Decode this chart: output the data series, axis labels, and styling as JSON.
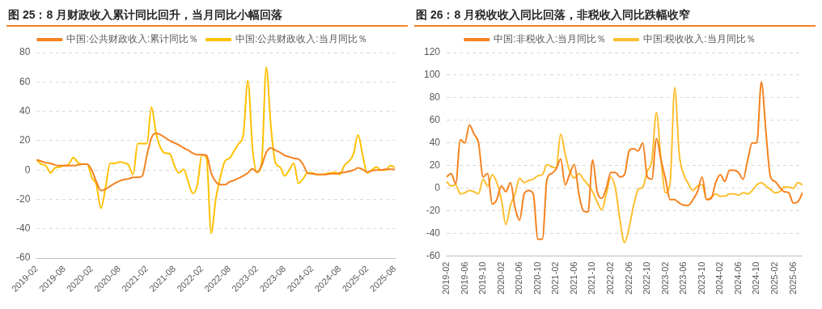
{
  "chart_data": [
    {
      "type": "line",
      "title": "图 25：8 月财政收入累计同比回升，当月同比小幅回落",
      "categories": [
        "2019-02",
        null,
        null,
        null,
        null,
        null,
        "2019-08",
        null,
        null,
        null,
        null,
        null,
        "2020-02",
        null,
        null,
        null,
        null,
        null,
        "2020-08",
        null,
        null,
        null,
        null,
        null,
        "2021-02",
        null,
        null,
        null,
        null,
        null,
        "2021-08",
        null,
        null,
        null,
        null,
        null,
        "2022-02",
        null,
        null,
        null,
        null,
        null,
        "2022-08",
        null,
        null,
        null,
        null,
        null,
        "2023-02",
        null,
        null,
        null,
        null,
        null,
        "2023-08",
        null,
        null,
        null,
        null,
        null,
        "2024-02",
        null,
        null,
        null,
        null,
        null,
        "2024-08",
        null,
        null,
        null,
        null,
        null,
        "2025-02",
        null,
        null,
        null,
        null,
        null,
        "2025-08"
      ],
      "series": [
        {
          "name": "中国:公共财政收入:累计同比％",
          "color": "#f58220",
          "values": [
            7,
            6,
            5,
            4.5,
            3.5,
            3,
            3,
            3,
            3,
            3.5,
            4,
            4,
            0,
            -8,
            -14,
            -13,
            -11,
            -9,
            -7.5,
            -6.5,
            -6,
            -5,
            -5,
            -4,
            10,
            22,
            25,
            24,
            22,
            20,
            18.5,
            17,
            15,
            13.5,
            11.5,
            10.5,
            10.5,
            10,
            -2,
            -8,
            -10,
            -10,
            -8,
            -7,
            -5.5,
            -4,
            -2,
            1,
            -1.5,
            3,
            12,
            15,
            13.5,
            12,
            10,
            9,
            8,
            7.5,
            4,
            -2,
            -2.5,
            -3,
            -3,
            -3,
            -2.5,
            -2.5,
            -2,
            -1.5,
            -1,
            0,
            1.5,
            0.5,
            -1.5,
            -0.5,
            0,
            0,
            0.5,
            0.5,
            0.5
          ]
        },
        {
          "name": "中国:公共财政收入:当月同比％",
          "color": "#ffc000",
          "values": [
            7,
            4,
            3,
            -2,
            1.5,
            2,
            3,
            4,
            8.5,
            5,
            4,
            4,
            -5,
            -10,
            -26,
            -12,
            4.5,
            4.5,
            5.5,
            5,
            3.5,
            -3,
            18,
            18,
            18,
            43,
            25,
            15,
            11.5,
            11,
            3,
            -2,
            0.5,
            -8,
            -16,
            -10,
            10.5,
            8,
            -43,
            -20,
            -5,
            6,
            8,
            13,
            18,
            24,
            61,
            15,
            -1.5,
            5,
            70,
            30,
            5,
            2,
            -4,
            0,
            4.5,
            -9,
            -6,
            -2,
            -2,
            -3,
            -3,
            -2.5,
            -2,
            -1.5,
            -3,
            3,
            6,
            11,
            24,
            10,
            -2,
            0,
            2,
            0,
            0,
            3,
            2
          ]
        }
      ],
      "ylim": [
        -60,
        80
      ],
      "yticks": [
        -60,
        -40,
        -20,
        0,
        20,
        40,
        60,
        80
      ],
      "grid": "y",
      "legend": "top",
      "marker": "none",
      "line_style": "solid"
    },
    {
      "type": "line",
      "title": "图 26：8 月税收收入同比回落，非税收入同比跌幅收窄",
      "categories": [
        "2019-02",
        null,
        null,
        null,
        "2019-06",
        null,
        null,
        null,
        "2019-10",
        null,
        null,
        null,
        "2020-02",
        null,
        null,
        null,
        "2020-06",
        null,
        null,
        null,
        "2020-10",
        null,
        null,
        null,
        "2021-02",
        null,
        null,
        null,
        "2021-06",
        null,
        null,
        null,
        "2021-10",
        null,
        null,
        null,
        "2022-02",
        null,
        null,
        null,
        "2022-06",
        null,
        null,
        null,
        "2022-10",
        null,
        null,
        null,
        "2023-02",
        null,
        null,
        null,
        "2023-06",
        null,
        null,
        null,
        "2023-10",
        null,
        null,
        null,
        "2024-02",
        null,
        null,
        null,
        "2024-06",
        null,
        null,
        null,
        "2024-10",
        null,
        null,
        null,
        "2025-02",
        null,
        null,
        null,
        "2025-06",
        null,
        null
      ],
      "series": [
        {
          "name": "中国:非税收入:当月同比％",
          "color": "#f58220",
          "values": [
            10,
            13,
            4,
            43,
            40,
            56,
            48,
            40,
            10,
            13,
            -14,
            -10,
            2,
            -3,
            5,
            -17,
            -28,
            -5,
            -2,
            -5,
            -45,
            -45,
            8,
            13,
            17,
            26,
            3,
            13,
            21,
            -5,
            -20,
            -21,
            25,
            -3,
            -9,
            0,
            14,
            14,
            10,
            12,
            33,
            35,
            33,
            40,
            10,
            8,
            44,
            25,
            8,
            -10,
            -10,
            -13,
            -15,
            -15,
            -10,
            -3,
            10,
            -10,
            -9,
            5,
            12,
            6,
            16,
            16,
            14,
            8,
            25,
            40,
            40,
            94,
            50,
            10,
            6,
            1,
            -3,
            -4,
            -13,
            -12,
            -4
          ]
        },
        {
          "name": "中国:税收收入:当月同比％",
          "color": "#fdbf2d",
          "values": [
            6,
            2,
            3,
            -5,
            -4,
            -2,
            -3,
            -5,
            8,
            2,
            12,
            5,
            -10,
            -32,
            -15,
            -5,
            9,
            5,
            7,
            8,
            11,
            12,
            21,
            19,
            18,
            48,
            30,
            15,
            9,
            13,
            8,
            3,
            -3,
            -12,
            -19,
            -5,
            10,
            0,
            -28,
            -48,
            -35,
            -15,
            -1,
            1,
            15,
            25,
            67,
            25,
            -4,
            5,
            89,
            30,
            12,
            4,
            -2,
            2,
            3,
            -10,
            -8,
            -5,
            -7,
            -7,
            -5,
            -5,
            -6,
            -4,
            -5,
            -2,
            3,
            5,
            2,
            -1,
            -4,
            -3,
            1,
            1,
            0,
            5,
            3
          ]
        }
      ],
      "ylim": [
        -60,
        120
      ],
      "yticks": [
        -60,
        -40,
        -20,
        0,
        20,
        40,
        60,
        80,
        100,
        120
      ],
      "grid": "y",
      "legend": "top",
      "marker": "none",
      "line_style": "solid"
    }
  ]
}
